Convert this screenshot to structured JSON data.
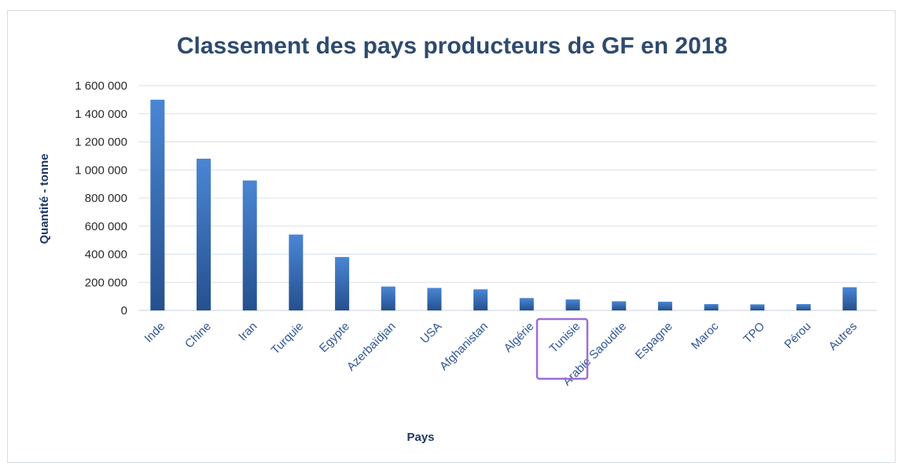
{
  "chart_data": {
    "type": "bar",
    "title": "Classement des pays producteurs de GF en 2018",
    "xlabel": "Pays",
    "ylabel": "Quantité - tonne",
    "ylim": [
      0,
      1600000
    ],
    "yticks": [
      0,
      200000,
      400000,
      600000,
      800000,
      1000000,
      1200000,
      1400000,
      1600000
    ],
    "ytick_labels": [
      "0",
      "200 000",
      "400 000",
      "600 000",
      "800 000",
      "1 000 000",
      "1 200 000",
      "1 400 000",
      "1 600 000"
    ],
    "categories": [
      "Inde",
      "Chine",
      "Iran",
      "Turquie",
      "Egypte",
      "Azerbaïdjan",
      "USA",
      "Afghanistan",
      "Algérie",
      "Tunisie",
      "Arabie Saoudite",
      "Espagne",
      "Maroc",
      "TPO",
      "Pérou",
      "Autres"
    ],
    "values": [
      1500000,
      1080000,
      925000,
      540000,
      380000,
      170000,
      160000,
      150000,
      88000,
      78000,
      65000,
      62000,
      45000,
      43000,
      45000,
      165000
    ],
    "grid": true,
    "legend": "none",
    "highlighted_category": "Tunisie"
  },
  "colors": {
    "bar_top": "#4a86d4",
    "bar_bottom": "#25508e",
    "grid": "#d9e1ec",
    "highlight_box": "#9b6fd6"
  }
}
